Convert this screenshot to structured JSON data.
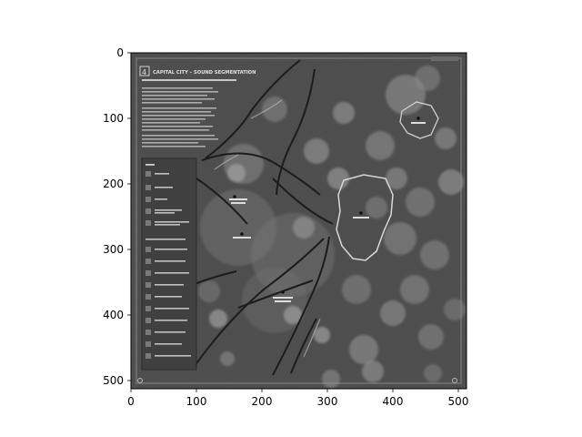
{
  "figure": {
    "x_ticks": [
      "0",
      "100",
      "200",
      "300",
      "400",
      "500"
    ],
    "y_ticks": [
      "0",
      "100",
      "200",
      "300",
      "400",
      "500"
    ],
    "x_range": [
      0,
      512
    ],
    "y_range": [
      512,
      0
    ],
    "image_colormap": "grayscale"
  },
  "map": {
    "title_number": "4",
    "title": "CAPITAL CITY – SOUND SEGMENTATION"
  },
  "colors": {
    "map_bg": "#4d4d4d",
    "legend_panel": "#404040",
    "outline_light": "#d8d8d8",
    "road_dark": "#1c1c1c"
  }
}
